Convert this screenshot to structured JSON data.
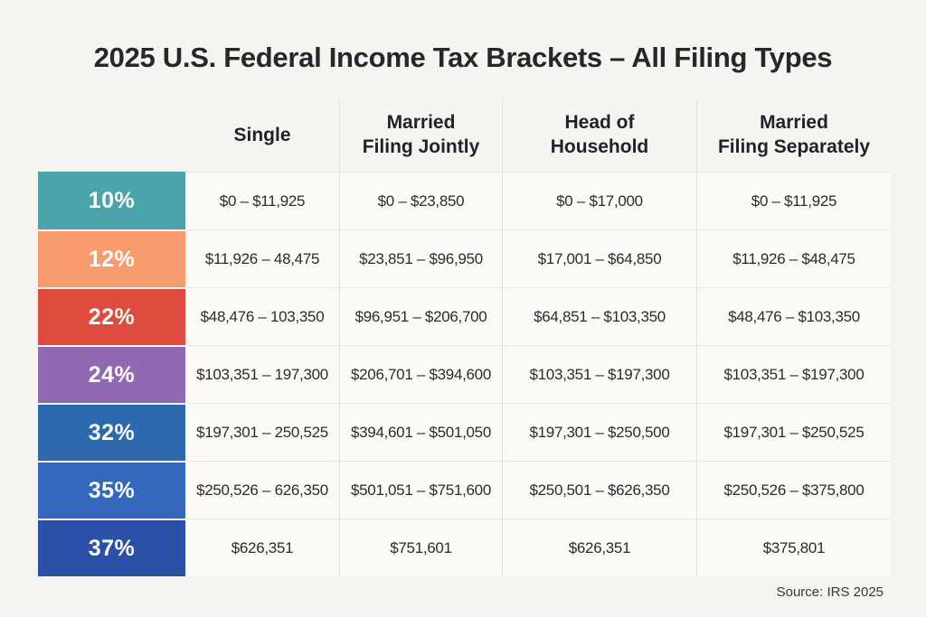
{
  "chart_data": {
    "type": "table",
    "title": "2025 U.S. Federal Income Tax Brackets – All Filing Types",
    "source": "Source: IRS 2025",
    "columns": [
      "Single",
      "Married\nFiling Jointly",
      "Head of\nHousehold",
      "Married\nFiling Separately"
    ],
    "rows": [
      {
        "rate": "10%",
        "color": "#4BA4AB",
        "cells": [
          "$0 – $11,925",
          "$0 – $23,850",
          "$0 – $17,000",
          "$0 – $11,925"
        ]
      },
      {
        "rate": "12%",
        "color": "#F89C6D",
        "cells": [
          "$11,926 – 48,475",
          "$23,851 – $96,950",
          "$17,001 – $64,850",
          "$11,926 – $48,475"
        ]
      },
      {
        "rate": "22%",
        "color": "#E04B40",
        "cells": [
          "$48,476 – 103,350",
          "$96,951 – $206,700",
          "$64,851 – $103,350",
          "$48,476 – $103,350"
        ]
      },
      {
        "rate": "24%",
        "color": "#9169B3",
        "cells": [
          "$103,351 – 197,300",
          "$206,701 – $394,600",
          "$103,351 – $197,300",
          "$103,351 – $197,300"
        ]
      },
      {
        "rate": "32%",
        "color": "#2D69AE",
        "cells": [
          "$197,301 – 250,525",
          "$394,601 – $501,050",
          "$197,301 – $250,500",
          "$197,301 – $250,525"
        ]
      },
      {
        "rate": "35%",
        "color": "#3468BD",
        "cells": [
          "$250,526 – 626,350",
          "$501,051 – $751,600",
          "$250,501 – $626,350",
          "$250,526 – $375,800"
        ]
      },
      {
        "rate": "37%",
        "color": "#2B50A7",
        "cells": [
          "$626,351",
          "$751,601",
          "$626,351",
          "$375,801"
        ]
      }
    ],
    "layout": {
      "background": "#F6F4F0",
      "cell_background": "#FBFAF7",
      "divider": "#E4E1DB",
      "text_color": "#2B2B30",
      "rate_text_color": "#FFFFFF"
    }
  }
}
